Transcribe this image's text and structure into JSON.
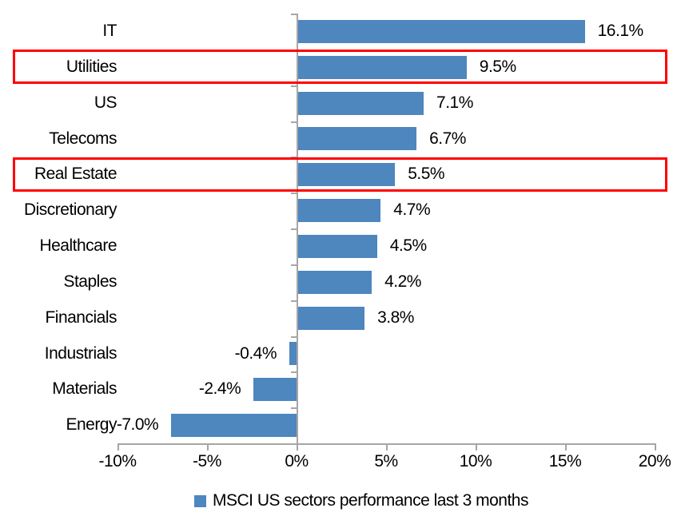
{
  "chart_data": {
    "type": "bar",
    "orientation": "horizontal",
    "title": "",
    "xlabel": "",
    "ylabel": "",
    "categories": [
      "IT",
      "Utilities",
      "US",
      "Telecoms",
      "Real Estate",
      "Discretionary",
      "Healthcare",
      "Staples",
      "Financials",
      "Industrials",
      "Materials",
      "Energy"
    ],
    "values": [
      16.1,
      9.5,
      7.1,
      6.7,
      5.5,
      4.7,
      4.5,
      4.2,
      3.8,
      -0.4,
      -2.4,
      -7.0
    ],
    "value_labels": [
      "16.1%",
      "9.5%",
      "7.1%",
      "6.7%",
      "5.5%",
      "4.7%",
      "4.5%",
      "4.2%",
      "3.8%",
      "-0.4%",
      "-2.4%",
      "-7.0%"
    ],
    "highlighted_categories": [
      "Utilities",
      "Real Estate"
    ],
    "x_ticks": [
      "-10%",
      "-5%",
      "0%",
      "5%",
      "10%",
      "15%",
      "20%"
    ],
    "x_tick_values": [
      -10,
      -5,
      0,
      5,
      10,
      15,
      20
    ],
    "xlim": [
      -10,
      20
    ],
    "grid": false,
    "legend": {
      "label": "MSCI US sectors performance last 3 months",
      "position": "bottom",
      "marker": "square-icon"
    },
    "colors": {
      "bar": "#4E86BE",
      "highlight_box": "#FF0000",
      "axis": "#A6A6A6",
      "text": "#000000",
      "background": "#FFFFFF"
    }
  }
}
